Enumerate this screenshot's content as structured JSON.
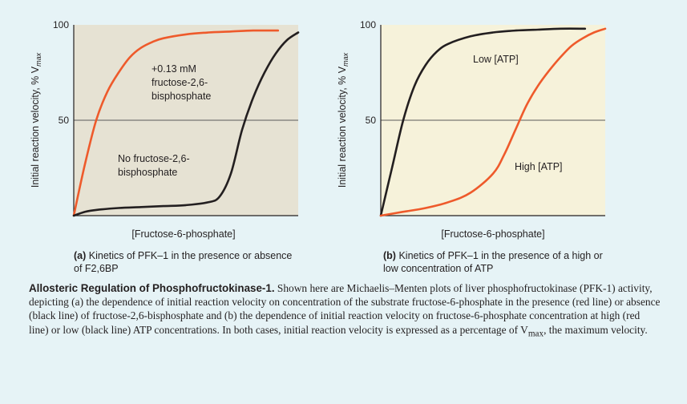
{
  "colors": {
    "background": "#e6f3f6",
    "panel_a_fill": "#e6e2d3",
    "panel_b_fill": "#f6f2da",
    "red_line": "#ee5a2b",
    "black_line": "#231f20"
  },
  "chart_data": [
    {
      "type": "line",
      "ylabel": "Initial reaction velocity, % V",
      "ylabel_sub": "max",
      "xlabel": "[Fructose-6-phosphate]",
      "ylim": [
        0,
        100
      ],
      "yticks": [
        "100",
        "50"
      ],
      "ytick_values": [
        100,
        50
      ],
      "gridline_y": 50,
      "xlim": [
        0,
        10
      ],
      "caption_letter": "(a)",
      "caption_text": "Kinetics of PFK–1 in the presence or absence of F2,6BP",
      "annotations": [
        {
          "lines": [
            "+0.13 mM",
            "fructose-2,6-",
            "bisphosphate"
          ]
        },
        {
          "lines": [
            "No fructose-2,6-",
            "bisphosphate"
          ]
        }
      ],
      "series": [
        {
          "color": "red",
          "x": [
            0,
            0.5,
            1,
            1.5,
            2,
            2.5,
            3,
            3.5,
            4,
            5,
            6,
            7,
            8,
            9.1
          ],
          "y": [
            0,
            27,
            50,
            65,
            75,
            83,
            88,
            91,
            93,
            95,
            96,
            96.5,
            97,
            97
          ]
        },
        {
          "color": "black",
          "x": [
            0,
            0.5,
            1,
            2,
            3,
            4,
            5,
            6,
            6.5,
            7,
            7.5,
            8,
            8.5,
            9,
            9.5,
            10
          ],
          "y": [
            0,
            2,
            3,
            4,
            4.5,
            5,
            5.5,
            7,
            10,
            22,
            45,
            62,
            75,
            85,
            92,
            96
          ]
        }
      ]
    },
    {
      "type": "line",
      "ylabel": "Initial reaction velocity, % V",
      "ylabel_sub": "max",
      "xlabel": "[Fructose-6-phosphate]",
      "ylim": [
        0,
        100
      ],
      "yticks": [
        "100",
        "50"
      ],
      "ytick_values": [
        100,
        50
      ],
      "gridline_y": 50,
      "xlim": [
        0,
        10
      ],
      "caption_letter": "(b)",
      "caption_text": "Kinetics of PFK–1 in the presence of a high or low concentration of ATP",
      "annotations": [
        {
          "lines": [
            "Low [ATP]"
          ]
        },
        {
          "lines": [
            "High [ATP]"
          ]
        }
      ],
      "series": [
        {
          "color": "black",
          "x": [
            0,
            0.5,
            1,
            1.5,
            2,
            2.5,
            3,
            4,
            5,
            6,
            7,
            8,
            9.1
          ],
          "y": [
            0,
            25,
            50,
            68,
            79,
            86,
            90,
            94,
            96,
            97,
            97.5,
            98,
            98
          ]
        },
        {
          "color": "red",
          "x": [
            0,
            1,
            2,
            3,
            4,
            5,
            5.5,
            6,
            6.5,
            7,
            7.5,
            8,
            8.5,
            9,
            9.5,
            10
          ],
          "y": [
            0,
            2,
            4,
            7,
            12,
            22,
            32,
            45,
            58,
            68,
            76,
            83,
            89,
            93,
            96,
            98
          ]
        }
      ]
    }
  ],
  "caption": {
    "title": "Allosteric Regulation of Phosphofructokinase-1.",
    "body": "Shown here are Michaelis–Menten plots of liver phosphofructokinase (PFK-1) activity, depicting (a) the dependence of initial reaction velocity on concentration of the substrate fructose-6-phosphate in the presence (red line) or absence (black line) of fructose-2,6-bisphosphate and (b) the dependence of initial reaction velocity on fructose-6-phosphate concentration at high (red line) or low (black line) ATP concentrations. In both cases, initial reaction velocity is expressed as a percentage of V",
    "body_sub": "max",
    "body_end": ", the maximum velocity."
  }
}
